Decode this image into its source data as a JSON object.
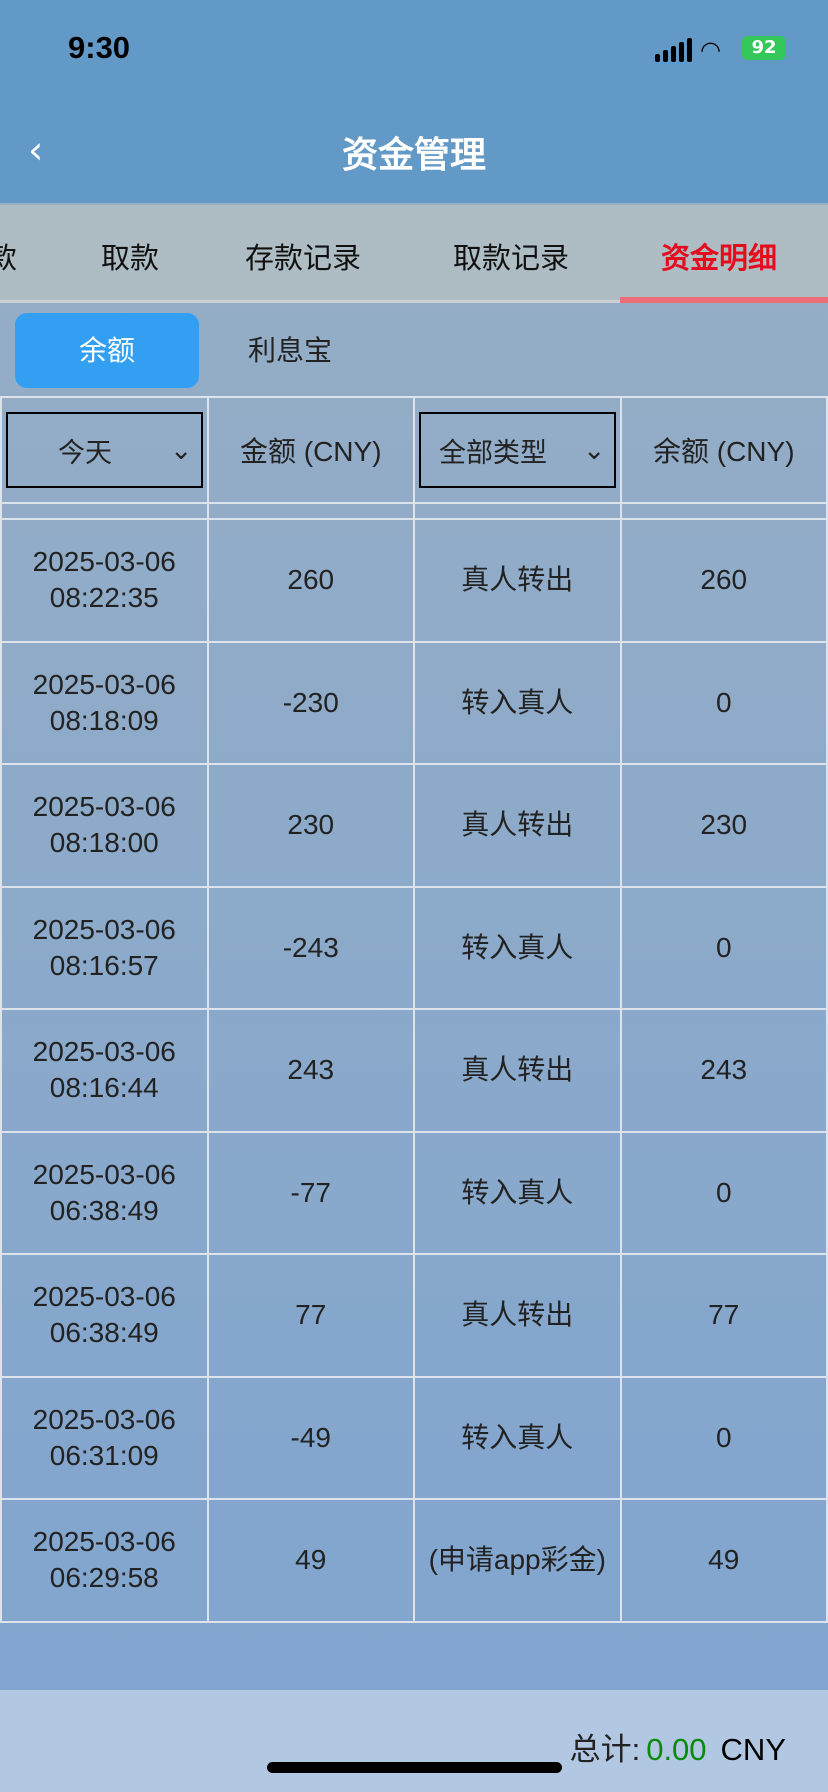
{
  "status": {
    "time": "9:30",
    "battery": "92"
  },
  "header": {
    "title": "资金管理",
    "back_icon": "chevron-left-icon"
  },
  "tabs": [
    {
      "label": "款"
    },
    {
      "label": "取款"
    },
    {
      "label": "存款记录"
    },
    {
      "label": "取款记录"
    },
    {
      "label": "资金明细",
      "active": true
    }
  ],
  "subtabs": [
    {
      "label": "余额",
      "active": true
    },
    {
      "label": "利息宝"
    }
  ],
  "table": {
    "date_filter": "今天",
    "amount_header": "金额 (CNY)",
    "type_filter": "全部类型",
    "balance_header": "余额 (CNY)",
    "rows": [
      {
        "date": "2025-03-06",
        "time": "08:22:35",
        "amount": "260",
        "type": "真人转出",
        "balance": "260"
      },
      {
        "date": "2025-03-06",
        "time": "08:18:09",
        "amount": "-230",
        "type": "转入真人",
        "balance": "0"
      },
      {
        "date": "2025-03-06",
        "time": "08:18:00",
        "amount": "230",
        "type": "真人转出",
        "balance": "230"
      },
      {
        "date": "2025-03-06",
        "time": "08:16:57",
        "amount": "-243",
        "type": "转入真人",
        "balance": "0"
      },
      {
        "date": "2025-03-06",
        "time": "08:16:44",
        "amount": "243",
        "type": "真人转出",
        "balance": "243"
      },
      {
        "date": "2025-03-06",
        "time": "06:38:49",
        "amount": "-77",
        "type": "转入真人",
        "balance": "0"
      },
      {
        "date": "2025-03-06",
        "time": "06:38:49",
        "amount": "77",
        "type": "真人转出",
        "balance": "77"
      },
      {
        "date": "2025-03-06",
        "time": "06:31:09",
        "amount": "-49",
        "type": "转入真人",
        "balance": "0"
      },
      {
        "date": "2025-03-06",
        "time": "06:29:58",
        "amount": "49",
        "type": "(申请app彩金)",
        "balance": "49"
      }
    ]
  },
  "footer": {
    "label": "总计:",
    "value": "0.00",
    "currency": "CNY",
    "value_color": "#0a8a0a"
  },
  "colors": {
    "header": "#6399c6",
    "active_tab": "#e40d1e",
    "active_subtab": "#329ff3"
  }
}
